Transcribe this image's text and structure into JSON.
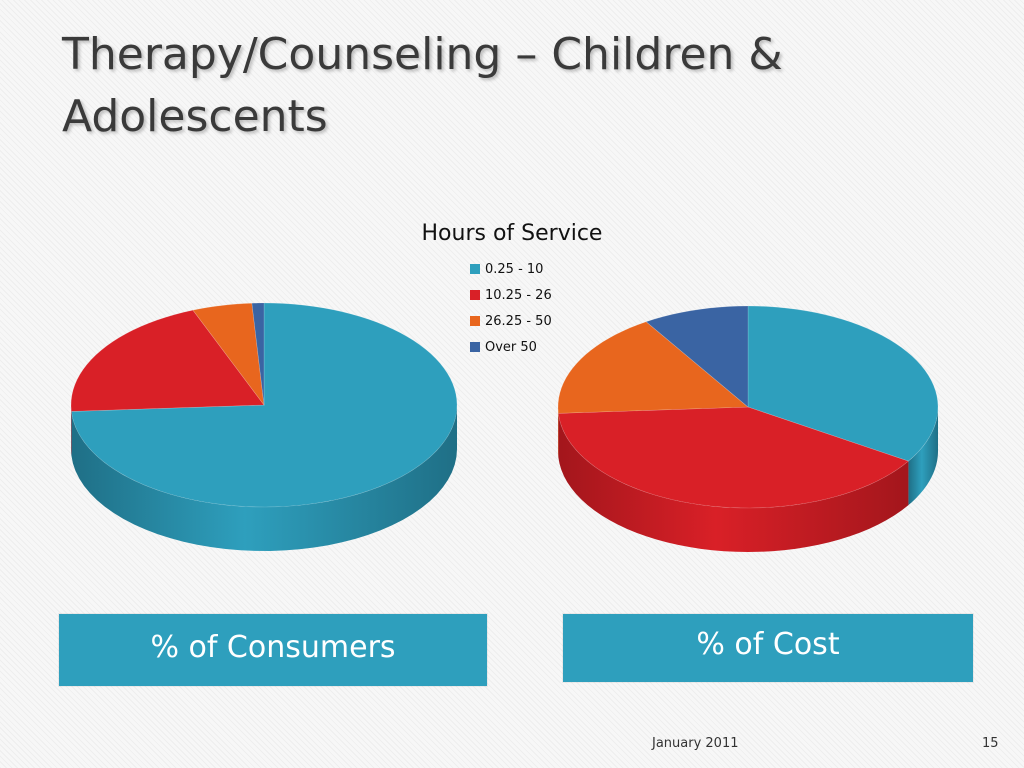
{
  "slide": {
    "title": "Therapy/Counseling – Children & Adolescents",
    "footer_date": "January 2011",
    "page_number": "15"
  },
  "chart_data": {
    "type": "pie",
    "title": "Hours of Service",
    "legend_position": "top-center",
    "categories": [
      " 0.25 - 10",
      "10.25 - 26",
      "26.25 - 50",
      "Over 50"
    ],
    "colors": [
      "#2e9fbd",
      "#d92027",
      "#e8661e",
      "#3a64a3"
    ],
    "side_colors": [
      "#1f6f86",
      "#a3161c",
      "#a84510",
      "#284673"
    ],
    "series": [
      {
        "name": "% of Consumers",
        "values": [
          74,
          20,
          5,
          1
        ]
      },
      {
        "name": "% of Cost",
        "values": [
          34,
          40,
          17,
          9
        ]
      }
    ]
  }
}
